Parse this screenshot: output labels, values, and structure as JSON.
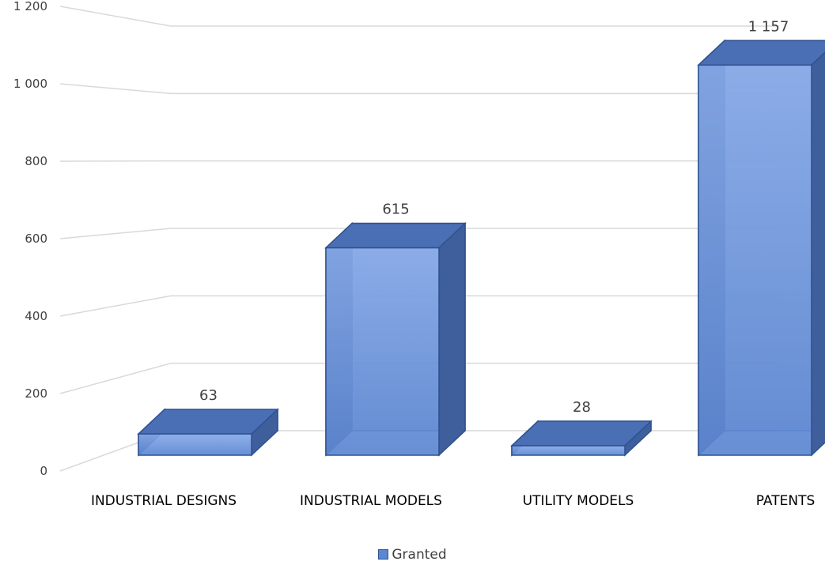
{
  "chart_data": {
    "type": "bar",
    "style": "3d-column",
    "categories": [
      "INDUSTRIAL DESIGNS",
      "INDUSTRIAL MODELS",
      "UTILITY MODELS",
      "PATENTS"
    ],
    "series": [
      {
        "name": "Granted",
        "values": [
          63,
          615,
          28,
          1157
        ]
      }
    ],
    "data_labels": [
      "63",
      "615",
      "28",
      "1 157"
    ],
    "y_ticks": [
      "0",
      "200",
      "400",
      "600",
      "800",
      "1 000",
      "1 200"
    ],
    "ylim": [
      0,
      1200
    ],
    "grid": true,
    "legend_position": "bottom-center",
    "colors": {
      "bar_front": "#5b86d1",
      "bar_front_top": "#86a9e8",
      "bar_top": "#4a6fb5",
      "bar_side": "#3f5f9c",
      "bar_back": "#2f4373",
      "bar_edge": "#2f528f",
      "gridline": "#d9d9d9"
    }
  },
  "legend": {
    "label": "Granted"
  }
}
